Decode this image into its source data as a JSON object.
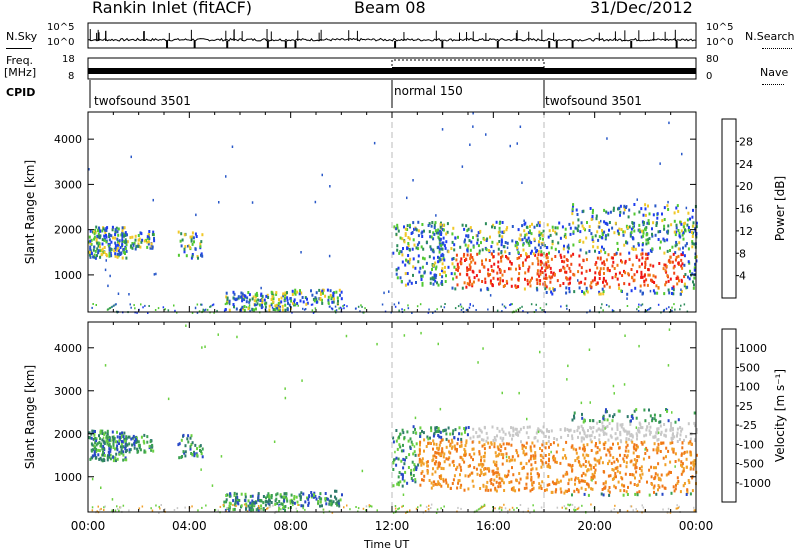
{
  "header": {
    "title": "Rankin Inlet (fitACF)",
    "beam": "Beam 08",
    "date": "31/Dec/2012"
  },
  "strip": {
    "nsky_label": "N.Sky",
    "nsky_ticks": [
      "10^5",
      "10^0"
    ],
    "nsearch_label": "N.Search",
    "freq_label": "Freq.",
    "freq_unit": "[MHz]",
    "freq_ticks": [
      "18",
      "8"
    ],
    "nave_label": "Nave",
    "nave_ticks": [
      "80",
      "0"
    ],
    "cpid_label": "CPID",
    "cpid_segments": [
      {
        "label": "twofsound 3501",
        "start_hour": 0
      },
      {
        "label": "normal 150",
        "start_hour": 12
      },
      {
        "label": "twofsound 3501",
        "start_hour": 18
      }
    ]
  },
  "chart_data": [
    {
      "type": "heatmap",
      "title": "Power",
      "xlabel": "Time UT",
      "ylabel": "Slant Range [km]",
      "x_ticks": [
        "00:00",
        "04:00",
        "08:00",
        "12:00",
        "16:00",
        "20:00",
        "00:00"
      ],
      "xlim_hours": [
        0,
        24
      ],
      "ylim": [
        180,
        4600
      ],
      "y_ticks": [
        1000,
        2000,
        3000,
        4000
      ],
      "colorbar": {
        "label": "Power [dB]",
        "ticks": [
          4,
          8,
          12,
          16,
          20,
          24,
          28
        ],
        "colors": [
          "#1e3cf0",
          "#2858c8",
          "#2c8c5a",
          "#52c832",
          "#f0c828",
          "#f07814",
          "#f04614",
          "#f01414"
        ]
      },
      "cpid_boundaries_hours": [
        12,
        18
      ]
    },
    {
      "type": "heatmap",
      "title": "Velocity",
      "xlabel": "Time UT",
      "ylabel": "Slant Range [km]",
      "x_ticks": [
        "00:00",
        "04:00",
        "08:00",
        "12:00",
        "16:00",
        "20:00",
        "00:00"
      ],
      "xlim_hours": [
        0,
        24
      ],
      "ylim": [
        180,
        4600
      ],
      "y_ticks": [
        1000,
        2000,
        3000,
        4000
      ],
      "colorbar": {
        "label": "Velocity [m s⁻¹]",
        "ticks": [
          "1000",
          "500",
          "100",
          "25",
          "-25",
          "-100",
          "-500",
          "-1000"
        ],
        "colors": [
          "#2848c8",
          "#2e7a6a",
          "#3aa050",
          "#6ad040",
          "#c8c8c8",
          "#f0a028",
          "#f07818",
          "#f04010",
          "#f01414"
        ]
      },
      "cpid_boundaries_hours": [
        12,
        18
      ]
    }
  ]
}
